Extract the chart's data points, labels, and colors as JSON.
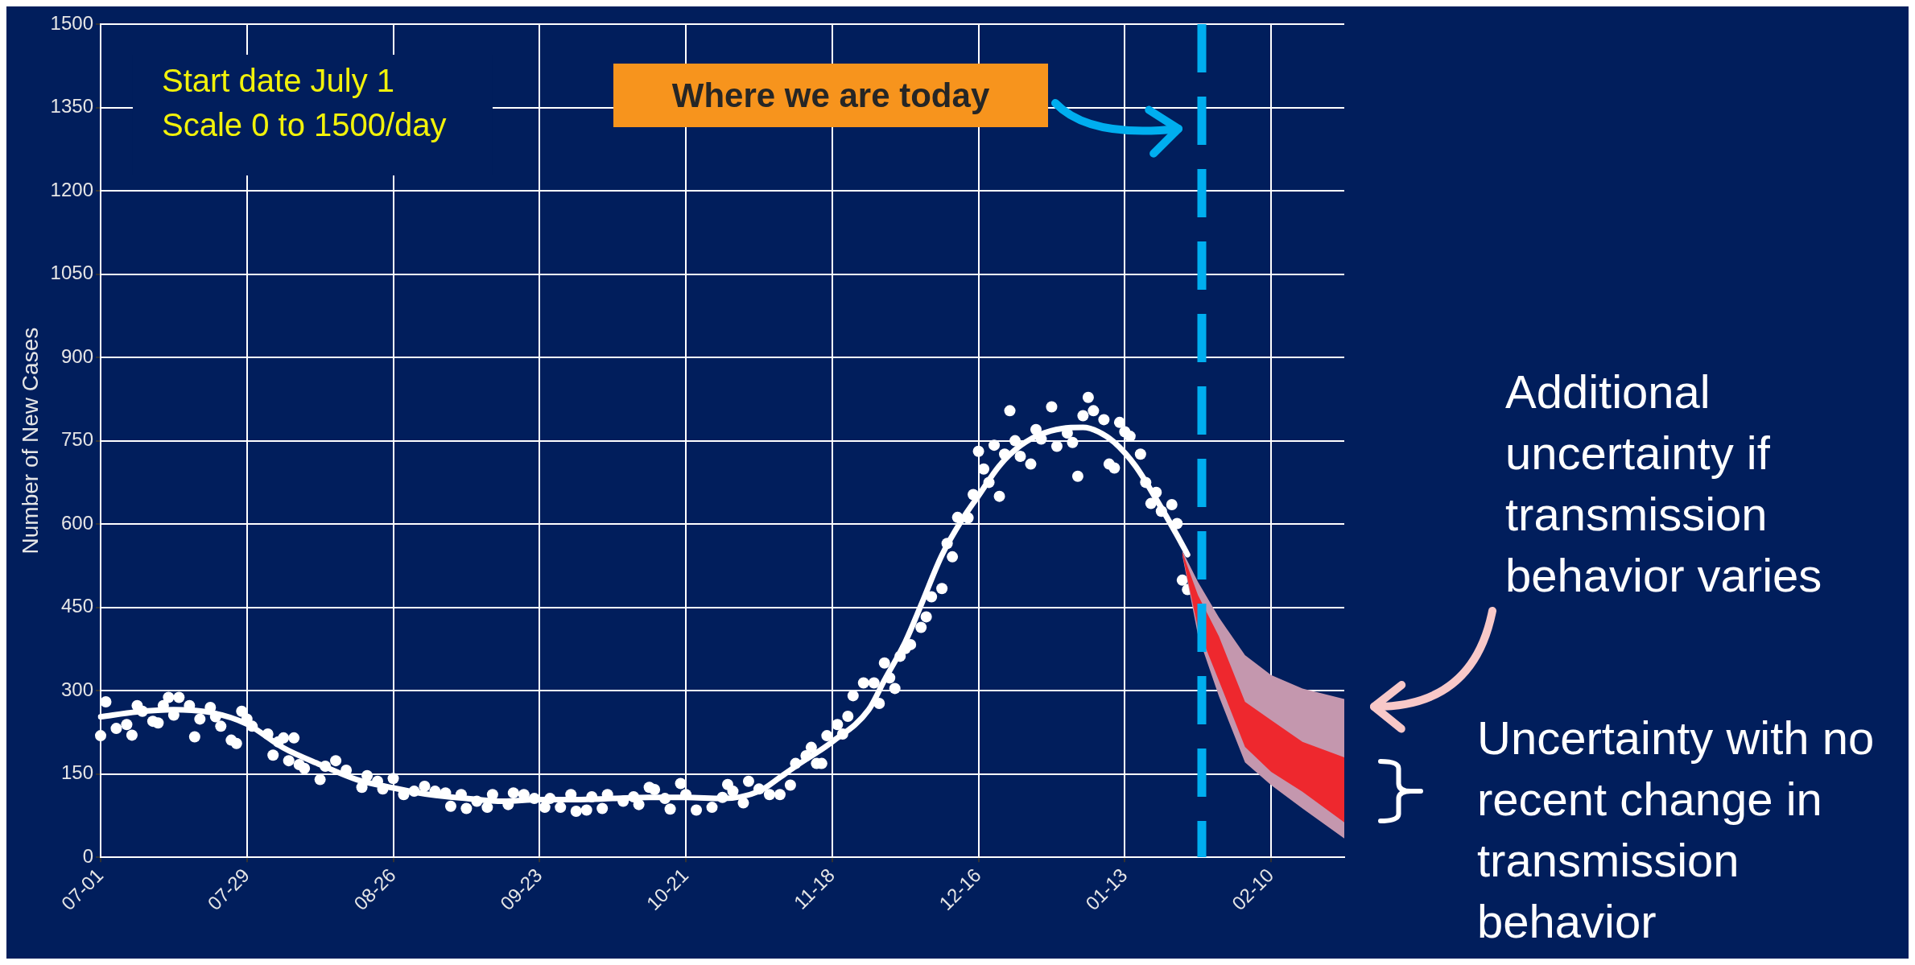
{
  "chart_data": {
    "type": "line",
    "ylabel": "Number of New Cases",
    "ylim": [
      0,
      1500
    ],
    "categories": [
      "07-01",
      null,
      null,
      null,
      null,
      null,
      null,
      null,
      null,
      null,
      null,
      null,
      null,
      null,
      null,
      null,
      null,
      null,
      null,
      null,
      null,
      null,
      null,
      null,
      null,
      null,
      null,
      null,
      "07-29",
      null,
      null,
      null,
      null,
      null,
      null,
      null,
      null,
      null,
      null,
      null,
      null,
      null,
      null,
      null,
      null,
      null,
      null,
      null,
      null,
      null,
      null,
      null,
      null,
      null,
      null,
      null,
      "08-26",
      null,
      null,
      null,
      null,
      null,
      null,
      null,
      null,
      null,
      null,
      null,
      null,
      null,
      null,
      null,
      null,
      null,
      null,
      null,
      null,
      null,
      null,
      null,
      null,
      null,
      null,
      null,
      "09-23",
      null,
      null,
      null,
      null,
      null,
      null,
      null,
      null,
      null,
      null,
      null,
      null,
      null,
      null,
      null,
      null,
      null,
      null,
      null,
      null,
      null,
      null,
      null,
      null,
      null,
      null,
      null,
      "10-21",
      null,
      null,
      null,
      null,
      null,
      null,
      null,
      null,
      null,
      null,
      null,
      null,
      null,
      null,
      null,
      null,
      null,
      null,
      null,
      null,
      null,
      null,
      null,
      null,
      null,
      null,
      null,
      "11-18",
      null,
      null,
      null,
      null,
      null,
      null,
      null,
      null,
      null,
      null,
      null,
      null,
      null,
      null,
      null,
      null,
      null,
      null,
      null,
      null,
      null,
      null,
      null,
      null,
      null,
      null,
      null,
      "12-16",
      null,
      null,
      null,
      null,
      null,
      null,
      null,
      null,
      null,
      null,
      null,
      null,
      null,
      null,
      null,
      null,
      null,
      null,
      null,
      null,
      null,
      null,
      null,
      null,
      null,
      null,
      null,
      "01-13",
      null,
      null,
      null,
      null,
      null,
      null,
      null,
      null,
      null,
      null,
      null,
      null,
      null,
      null,
      null,
      null,
      null,
      null,
      null,
      null,
      null,
      null,
      null,
      null,
      null,
      null,
      null,
      "02-10",
      null,
      null,
      null,
      null,
      null,
      null,
      null,
      null,
      null,
      null,
      null,
      null,
      null,
      null
    ],
    "yticks": [
      0,
      150,
      300,
      450,
      600,
      750,
      900,
      1050,
      1200,
      1350,
      1500
    ],
    "grid": true,
    "series": [
      {
        "type": "scatter",
        "color": "#ffffff",
        "marker": "circle",
        "values": [
          219,
          280,
          null,
          232,
          null,
          239,
          220,
          273,
          263,
          null,
          245,
          242,
          273,
          288,
          256,
          288,
          null,
          273,
          217,
          249,
          null,
          270,
          253,
          236,
          null,
          211,
          205,
          263,
          249,
          236,
          null,
          null,
          222,
          184,
          208,
          215,
          174,
          215,
          167,
          160,
          null,
          null,
          140,
          164,
          null,
          174,
          null,
          157,
          null,
          null,
          126,
          147,
          null,
          137,
          123,
          null,
          142,
          null,
          113,
          null,
          119,
          null,
          128,
          null,
          119,
          null,
          116,
          92,
          null,
          113,
          88,
          null,
          101,
          null,
          90,
          113,
          null,
          null,
          95,
          116,
          null,
          113,
          null,
          106,
          null,
          90,
          106,
          null,
          90,
          null,
          113,
          83,
          null,
          85,
          109,
          null,
          88,
          113,
          null,
          null,
          101,
          null,
          109,
          95,
          null,
          126,
          122,
          null,
          106,
          87,
          null,
          133,
          113,
          null,
          85,
          null,
          null,
          90,
          null,
          108,
          131,
          119,
          null,
          98,
          137,
          null,
          123,
          null,
          113,
          null,
          113,
          null,
          130,
          169,
          null,
          183,
          198,
          169,
          169,
          219,
          null,
          239,
          222,
          254,
          291,
          null,
          314,
          null,
          314,
          277,
          350,
          323,
          304,
          362,
          376,
          383,
          null,
          414,
          433,
          469,
          null,
          484,
          565,
          541,
          612,
          null,
          611,
          653,
          731,
          699,
          675,
          742,
          650,
          726,
          804,
          750,
          722,
          null,
          708,
          770,
          753,
          null,
          811,
          740,
          null,
          764,
          747,
          686,
          795,
          828,
          804,
          null,
          788,
          708,
          701,
          783,
          766,
          758,
          null,
          726,
          675,
          637,
          657,
          623,
          null,
          635,
          601,
          499,
          482,
          null,
          null,
          null,
          null,
          null,
          null,
          null,
          null,
          null,
          null,
          null,
          null,
          null,
          null,
          null,
          null,
          null,
          null,
          null,
          null,
          null,
          null,
          null,
          null,
          null,
          null,
          null,
          null,
          null,
          null
        ]
      },
      {
        "type": "line",
        "color": "#ffffff",
        "values": [
          253,
          null,
          null,
          null,
          null,
          null,
          null,
          262,
          null,
          null,
          null,
          null,
          null,
          null,
          266,
          null,
          null,
          null,
          null,
          null,
          null,
          261,
          null,
          null,
          null,
          null,
          null,
          null,
          240,
          null,
          null,
          null,
          null,
          null,
          null,
          197,
          null,
          null,
          null,
          null,
          null,
          null,
          167,
          null,
          null,
          null,
          null,
          null,
          null,
          140,
          null,
          null,
          null,
          null,
          null,
          null,
          125,
          null,
          null,
          null,
          null,
          null,
          null,
          113,
          null,
          null,
          null,
          null,
          null,
          null,
          106,
          null,
          null,
          null,
          null,
          null,
          null,
          101,
          null,
          null,
          null,
          null,
          null,
          null,
          104,
          null,
          null,
          null,
          null,
          null,
          null,
          104,
          null,
          null,
          null,
          null,
          null,
          null,
          106,
          null,
          null,
          null,
          null,
          null,
          null,
          108,
          null,
          null,
          null,
          null,
          null,
          null,
          108,
          null,
          null,
          null,
          null,
          null,
          null,
          106,
          null,
          null,
          null,
          null,
          null,
          null,
          119,
          null,
          null,
          null,
          144,
          null,
          null,
          164,
          null,
          null,
          null,
          null,
          null,
          null,
          208,
          null,
          null,
          null,
          null,
          null,
          null,
          266,
          null,
          null,
          319,
          null,
          null,
          null,
          388,
          null,
          null,
          454,
          null,
          null,
          null,
          544,
          null,
          null,
          null,
          610,
          null,
          null,
          651,
          null,
          null,
          null,
          705,
          null,
          null,
          null,
          741,
          null,
          null,
          null,
          762,
          null,
          null,
          null,
          772,
          null,
          null,
          null,
          774,
          null,
          null,
          766,
          null,
          null,
          747,
          null,
          null,
          null,
          705,
          null,
          null,
          null,
          645,
          null,
          null,
          null,
          580,
          null,
          545,
          null,
          null,
          null,
          null,
          null,
          null,
          null,
          null,
          null,
          null,
          null,
          null,
          null,
          null,
          null,
          null,
          null,
          null,
          null,
          null,
          null,
          null,
          null,
          null,
          null,
          null,
          null,
          null,
          null,
          null
        ]
      },
      {
        "type": "line",
        "color": "#c497ae",
        "values": [
          null,
          null,
          null,
          null,
          null,
          null,
          null,
          null,
          null,
          null,
          null,
          null,
          null,
          null,
          null,
          null,
          null,
          null,
          null,
          null,
          null,
          null,
          null,
          null,
          null,
          null,
          null,
          null,
          null,
          null,
          null,
          null,
          null,
          null,
          null,
          null,
          null,
          null,
          null,
          null,
          null,
          null,
          null,
          null,
          null,
          null,
          null,
          null,
          null,
          null,
          null,
          null,
          null,
          null,
          null,
          null,
          null,
          null,
          null,
          null,
          null,
          null,
          null,
          null,
          null,
          null,
          null,
          null,
          null,
          null,
          null,
          null,
          null,
          null,
          null,
          null,
          null,
          null,
          null,
          null,
          null,
          null,
          null,
          null,
          null,
          null,
          null,
          null,
          null,
          null,
          null,
          null,
          null,
          null,
          null,
          null,
          null,
          null,
          null,
          null,
          null,
          null,
          null,
          null,
          null,
          null,
          null,
          null,
          null,
          null,
          null,
          null,
          null,
          null,
          null,
          null,
          null,
          null,
          null,
          null,
          null,
          null,
          null,
          null,
          null,
          null,
          null,
          null,
          null,
          null,
          null,
          null,
          null,
          null,
          null,
          null,
          null,
          null,
          null,
          null,
          null,
          null,
          null,
          null,
          null,
          null,
          null,
          null,
          null,
          null,
          null,
          null,
          null,
          null,
          null,
          null,
          null,
          null,
          null,
          null,
          null,
          null,
          null,
          null,
          null,
          null,
          null,
          null,
          null,
          null,
          null,
          null,
          null,
          null,
          null,
          null,
          null,
          null,
          null,
          null,
          null,
          null,
          null,
          null,
          null,
          null,
          null,
          null,
          null,
          null,
          null,
          null,
          null,
          null,
          null,
          null,
          null,
          null,
          null,
          null,
          null,
          null,
          null,
          null,
          null,
          null,
          null,
          null,
          null,
          null,
          null,
          null,
          null,
          null,
          null,
          null,
          null,
          null,
          null,
          null,
          null,
          null,
          null,
          null,
          null,
          null,
          null,
          null,
          null,
          null,
          null,
          null,
          null,
          null,
          null,
          null,
          null,
          null,
          null
        ],
        "lower": [
          null,
          null,
          null,
          null,
          null,
          null,
          null,
          null,
          null,
          null,
          null,
          null,
          null,
          null,
          null,
          null,
          null,
          null,
          null,
          null,
          null,
          null,
          null,
          null,
          null,
          null,
          null,
          null,
          null,
          null,
          null,
          null,
          null,
          null,
          null,
          null,
          null,
          null,
          null,
          null,
          null,
          null,
          null,
          null,
          null,
          null,
          null,
          null,
          null,
          null,
          null,
          null,
          null,
          null,
          null,
          null,
          null,
          null,
          null,
          null,
          null,
          null,
          null,
          null,
          null,
          null,
          null,
          null,
          null,
          null,
          null,
          null,
          null,
          null,
          null,
          null,
          null,
          null,
          null,
          null,
          null,
          null,
          null,
          null,
          null,
          null,
          null,
          null,
          null,
          null,
          null,
          null,
          null,
          null,
          null,
          null,
          null,
          null,
          null,
          null,
          null,
          null,
          null,
          null,
          null,
          null,
          null,
          null,
          null,
          null,
          null,
          null,
          null,
          null,
          null,
          null,
          null,
          null,
          null,
          null,
          null,
          null,
          null,
          null,
          null,
          null,
          null,
          null,
          null,
          null,
          null,
          null,
          null,
          null,
          null,
          null,
          null,
          null,
          null,
          null,
          null,
          null,
          null,
          null,
          null,
          null,
          null,
          null,
          null,
          null,
          null,
          null,
          null,
          null,
          null,
          null,
          null,
          null,
          null,
          null,
          null,
          null,
          null,
          null,
          null,
          null,
          null,
          null,
          null,
          null,
          null,
          null,
          null,
          null,
          null,
          null,
          null,
          null,
          null,
          null,
          null,
          null,
          null,
          null,
          null,
          null,
          null,
          null,
          null,
          null,
          null,
          null,
          null,
          null,
          null,
          null,
          null,
          null,
          null,
          null,
          null,
          null,
          null,
          null,
          null,
          null,
          null,
          544,
          null,
          null,
          400,
          null,
          null,
          null,
          290,
          null,
          null,
          null,
          null,
          171,
          null,
          null,
          null,
          null,
          130,
          null,
          null,
          null,
          null,
          null,
          88,
          null,
          null,
          null,
          null,
          null,
          null,
          null,
          34
        ],
        "upper": [
          null,
          null,
          null,
          null,
          null,
          null,
          null,
          null,
          null,
          null,
          null,
          null,
          null,
          null,
          null,
          null,
          null,
          null,
          null,
          null,
          null,
          null,
          null,
          null,
          null,
          null,
          null,
          null,
          null,
          null,
          null,
          null,
          null,
          null,
          null,
          null,
          null,
          null,
          null,
          null,
          null,
          null,
          null,
          null,
          null,
          null,
          null,
          null,
          null,
          null,
          null,
          null,
          null,
          null,
          null,
          null,
          null,
          null,
          null,
          null,
          null,
          null,
          null,
          null,
          null,
          null,
          null,
          null,
          null,
          null,
          null,
          null,
          null,
          null,
          null,
          null,
          null,
          null,
          null,
          null,
          null,
          null,
          null,
          null,
          null,
          null,
          null,
          null,
          null,
          null,
          null,
          null,
          null,
          null,
          null,
          null,
          null,
          null,
          null,
          null,
          null,
          null,
          null,
          null,
          null,
          null,
          null,
          null,
          null,
          null,
          null,
          null,
          null,
          null,
          null,
          null,
          null,
          null,
          null,
          null,
          null,
          null,
          null,
          null,
          null,
          null,
          null,
          null,
          null,
          null,
          null,
          null,
          null,
          null,
          null,
          null,
          null,
          null,
          null,
          null,
          null,
          null,
          null,
          null,
          null,
          null,
          null,
          null,
          null,
          null,
          null,
          null,
          null,
          null,
          null,
          null,
          null,
          null,
          null,
          null,
          null,
          null,
          null,
          null,
          null,
          null,
          null,
          null,
          null,
          null,
          null,
          null,
          null,
          null,
          null,
          null,
          null,
          null,
          null,
          null,
          null,
          null,
          null,
          null,
          null,
          null,
          null,
          null,
          null,
          null,
          null,
          null,
          null,
          null,
          null,
          null,
          null,
          null,
          null,
          null,
          null,
          null,
          null,
          null,
          null,
          null,
          null,
          552,
          null,
          null,
          496,
          null,
          null,
          null,
          432,
          null,
          null,
          null,
          null,
          364,
          null,
          null,
          null,
          null,
          328,
          null,
          null,
          null,
          null,
          null,
          304,
          null,
          null,
          null,
          null,
          null,
          null,
          null,
          285
        ]
      },
      {
        "type": "line",
        "color": "#ee282e",
        "values": [
          null,
          null,
          null,
          null,
          null,
          null,
          null,
          null,
          null,
          null,
          null,
          null,
          null,
          null,
          null,
          null,
          null,
          null,
          null,
          null,
          null,
          null,
          null,
          null,
          null,
          null,
          null,
          null,
          null,
          null,
          null,
          null,
          null,
          null,
          null,
          null,
          null,
          null,
          null,
          null,
          null,
          null,
          null,
          null,
          null,
          null,
          null,
          null,
          null,
          null,
          null,
          null,
          null,
          null,
          null,
          null,
          null,
          null,
          null,
          null,
          null,
          null,
          null,
          null,
          null,
          null,
          null,
          null,
          null,
          null,
          null,
          null,
          null,
          null,
          null,
          null,
          null,
          null,
          null,
          null,
          null,
          null,
          null,
          null,
          null,
          null,
          null,
          null,
          null,
          null,
          null,
          null,
          null,
          null,
          null,
          null,
          null,
          null,
          null,
          null,
          null,
          null,
          null,
          null,
          null,
          null,
          null,
          null,
          null,
          null,
          null,
          null,
          null,
          null,
          null,
          null,
          null,
          null,
          null,
          null,
          null,
          null,
          null,
          null,
          null,
          null,
          null,
          null,
          null,
          null,
          null,
          null,
          null,
          null,
          null,
          null,
          null,
          null,
          null,
          null,
          null,
          null,
          null,
          null,
          null,
          null,
          null,
          null,
          null,
          null,
          null,
          null,
          null,
          null,
          null,
          null,
          null,
          null,
          null,
          null,
          null,
          null,
          null,
          null,
          null,
          null,
          null,
          null,
          null,
          null,
          null,
          null,
          null,
          null,
          null,
          null,
          null,
          null,
          null,
          null,
          null,
          null,
          null,
          null,
          null,
          null,
          null,
          null,
          null,
          null,
          null,
          null,
          null,
          null,
          null,
          null,
          null,
          null,
          null,
          null,
          null,
          null,
          null,
          null,
          null,
          null,
          null,
          null,
          null,
          null,
          null,
          null,
          null,
          null,
          null,
          null,
          null,
          null,
          null,
          null,
          null,
          null,
          null,
          null,
          null,
          null,
          null,
          null,
          null,
          null,
          null,
          null,
          null,
          null,
          null,
          null,
          null,
          null,
          null
        ],
        "lower": [
          null,
          null,
          null,
          null,
          null,
          null,
          null,
          null,
          null,
          null,
          null,
          null,
          null,
          null,
          null,
          null,
          null,
          null,
          null,
          null,
          null,
          null,
          null,
          null,
          null,
          null,
          null,
          null,
          null,
          null,
          null,
          null,
          null,
          null,
          null,
          null,
          null,
          null,
          null,
          null,
          null,
          null,
          null,
          null,
          null,
          null,
          null,
          null,
          null,
          null,
          null,
          null,
          null,
          null,
          null,
          null,
          null,
          null,
          null,
          null,
          null,
          null,
          null,
          null,
          null,
          null,
          null,
          null,
          null,
          null,
          null,
          null,
          null,
          null,
          null,
          null,
          null,
          null,
          null,
          null,
          null,
          null,
          null,
          null,
          null,
          null,
          null,
          null,
          null,
          null,
          null,
          null,
          null,
          null,
          null,
          null,
          null,
          null,
          null,
          null,
          null,
          null,
          null,
          null,
          null,
          null,
          null,
          null,
          null,
          null,
          null,
          null,
          null,
          null,
          null,
          null,
          null,
          null,
          null,
          null,
          null,
          null,
          null,
          null,
          null,
          null,
          null,
          null,
          null,
          null,
          null,
          null,
          null,
          null,
          null,
          null,
          null,
          null,
          null,
          null,
          null,
          null,
          null,
          null,
          null,
          null,
          null,
          null,
          null,
          null,
          null,
          null,
          null,
          null,
          null,
          null,
          null,
          null,
          null,
          null,
          null,
          null,
          null,
          null,
          null,
          null,
          null,
          null,
          null,
          null,
          null,
          null,
          null,
          null,
          null,
          null,
          null,
          null,
          null,
          null,
          null,
          null,
          null,
          null,
          null,
          null,
          null,
          null,
          null,
          null,
          null,
          null,
          null,
          null,
          null,
          null,
          null,
          null,
          null,
          null,
          null,
          null,
          null,
          null,
          null,
          null,
          null,
          546,
          null,
          null,
          412,
          null,
          null,
          null,
          318,
          null,
          null,
          null,
          null,
          199,
          null,
          null,
          null,
          null,
          154,
          null,
          null,
          null,
          null,
          null,
          118,
          null,
          null,
          null,
          null,
          null,
          null,
          null,
          63
        ],
        "upper": [
          null,
          null,
          null,
          null,
          null,
          null,
          null,
          null,
          null,
          null,
          null,
          null,
          null,
          null,
          null,
          null,
          null,
          null,
          null,
          null,
          null,
          null,
          null,
          null,
          null,
          null,
          null,
          null,
          null,
          null,
          null,
          null,
          null,
          null,
          null,
          null,
          null,
          null,
          null,
          null,
          null,
          null,
          null,
          null,
          null,
          null,
          null,
          null,
          null,
          null,
          null,
          null,
          null,
          null,
          null,
          null,
          null,
          null,
          null,
          null,
          null,
          null,
          null,
          null,
          null,
          null,
          null,
          null,
          null,
          null,
          null,
          null,
          null,
          null,
          null,
          null,
          null,
          null,
          null,
          null,
          null,
          null,
          null,
          null,
          null,
          null,
          null,
          null,
          null,
          null,
          null,
          null,
          null,
          null,
          null,
          null,
          null,
          null,
          null,
          null,
          null,
          null,
          null,
          null,
          null,
          null,
          null,
          null,
          null,
          null,
          null,
          null,
          null,
          null,
          null,
          null,
          null,
          null,
          null,
          null,
          null,
          null,
          null,
          null,
          null,
          null,
          null,
          null,
          null,
          null,
          null,
          null,
          null,
          null,
          null,
          null,
          null,
          null,
          null,
          null,
          null,
          null,
          null,
          null,
          null,
          null,
          null,
          null,
          null,
          null,
          null,
          null,
          null,
          null,
          null,
          null,
          null,
          null,
          null,
          null,
          null,
          null,
          null,
          null,
          null,
          null,
          null,
          null,
          null,
          null,
          null,
          null,
          null,
          null,
          null,
          null,
          null,
          null,
          null,
          null,
          null,
          null,
          null,
          null,
          null,
          null,
          null,
          null,
          null,
          null,
          null,
          null,
          null,
          null,
          null,
          null,
          null,
          null,
          null,
          null,
          null,
          null,
          null,
          null,
          null,
          null,
          null,
          550,
          null,
          null,
          472,
          null,
          null,
          null,
          398,
          null,
          null,
          null,
          null,
          280,
          null,
          null,
          null,
          null,
          247,
          null,
          null,
          null,
          null,
          null,
          208,
          null,
          null,
          null,
          null,
          null,
          null,
          null,
          180
        ]
      }
    ],
    "annotations": [
      "Start date July 1",
      "Scale 0 to 1500/day",
      "Where we are today",
      "Additional uncertainty if transmission behavior varies",
      "Uncertainty with no recent change in transmission behavior"
    ]
  }
}
